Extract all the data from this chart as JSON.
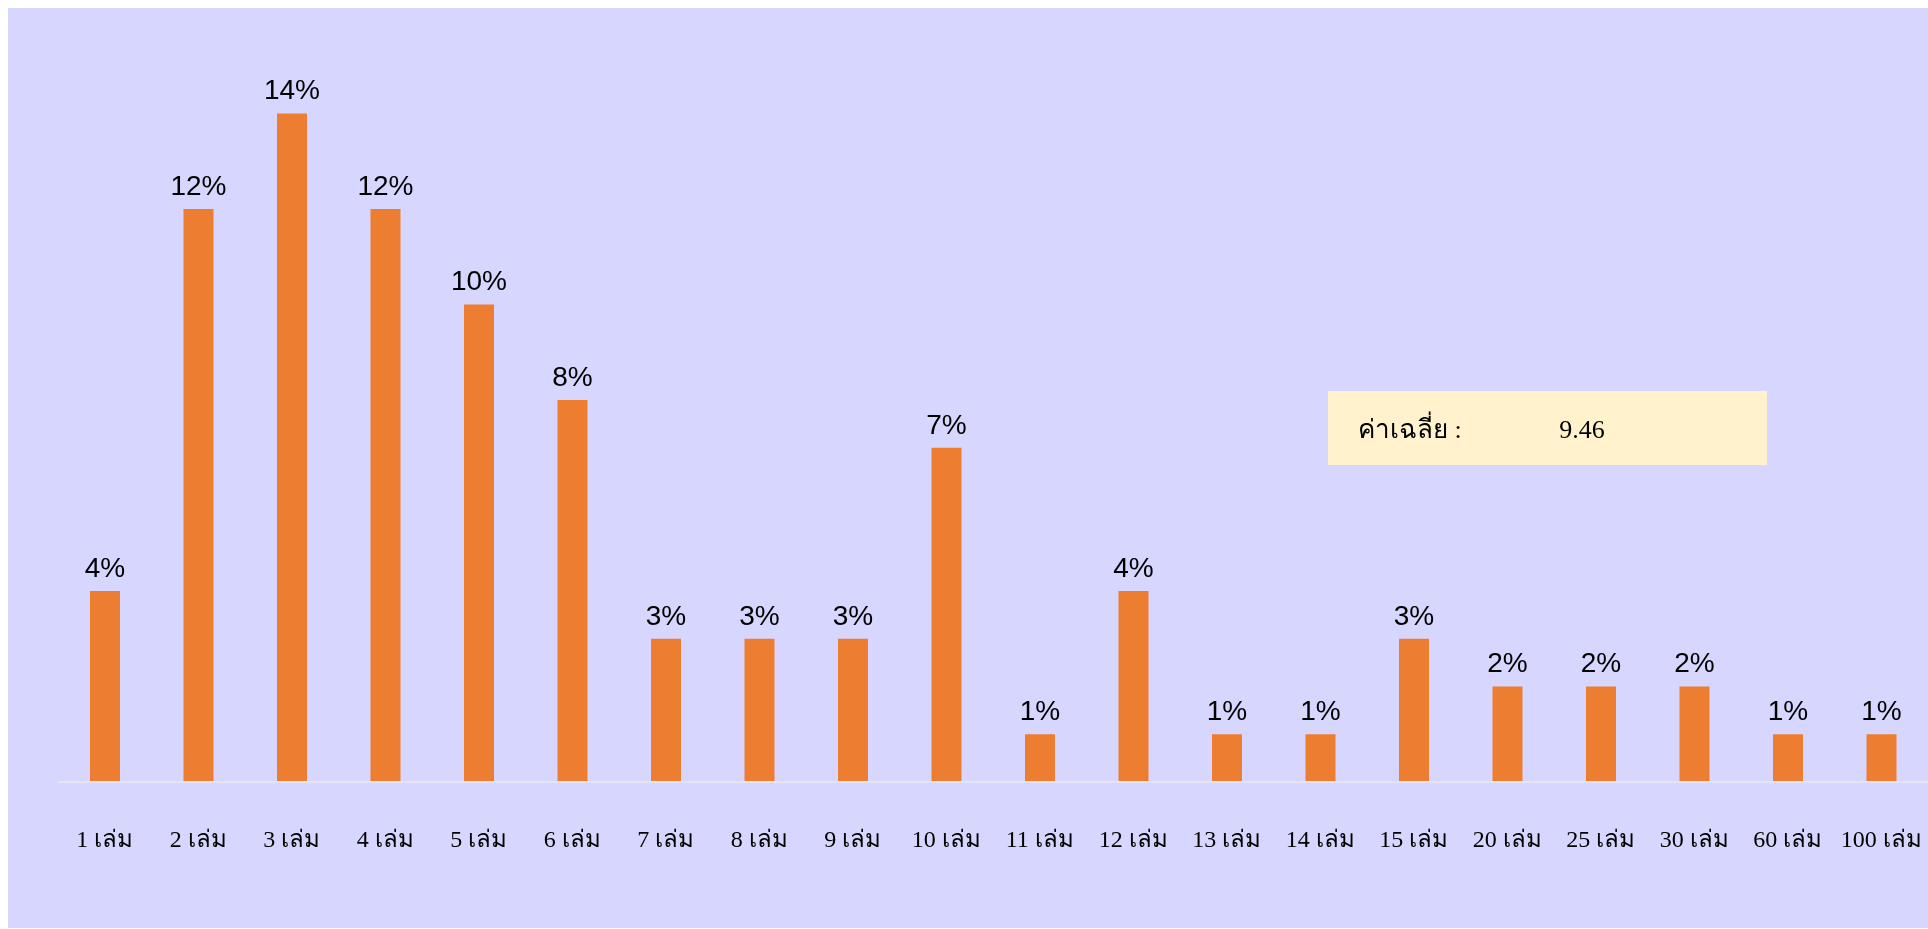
{
  "chart_data": {
    "type": "bar",
    "categories": [
      "1 เล่ม",
      "2 เล่ม",
      "3 เล่ม",
      "4 เล่ม",
      "5 เล่ม",
      "6 เล่ม",
      "7 เล่ม",
      "8 เล่ม",
      "9 เล่ม",
      "10 เล่ม",
      "11 เล่ม",
      "12 เล่ม",
      "13 เล่ม",
      "14 เล่ม",
      "15 เล่ม",
      "20 เล่ม",
      "25 เล่ม",
      "30 เล่ม",
      "60 เล่ม",
      "100 เล่ม"
    ],
    "values": [
      4,
      12,
      14,
      12,
      10,
      8,
      3,
      3,
      3,
      7,
      1,
      4,
      1,
      1,
      3,
      2,
      2,
      2,
      1,
      1
    ],
    "value_labels": [
      "4%",
      "12%",
      "14%",
      "12%",
      "10%",
      "8%",
      "3%",
      "3%",
      "3%",
      "7%",
      "1%",
      "4%",
      "1%",
      "1%",
      "3%",
      "2%",
      "2%",
      "2%",
      "1%",
      "1%"
    ],
    "color": "#ed7d31",
    "annotations": [
      "ค่าเฉลี่ย :               9.46"
    ]
  }
}
